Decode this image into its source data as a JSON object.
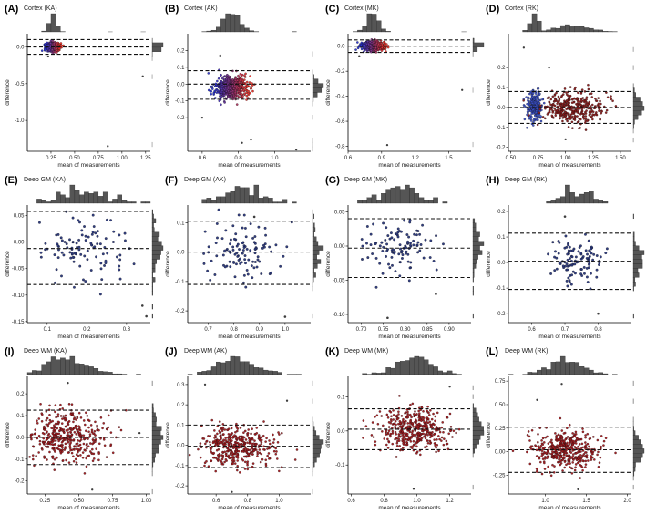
{
  "figure": {
    "y_label": "difference",
    "x_label": "mean of measurements"
  },
  "chart_data": [
    {
      "letter": "(A)",
      "title": "Cortex (KA)",
      "type": "scatter",
      "style": "dense-grad",
      "center_x": 0.27,
      "spread_x": 0.035,
      "center_y": 0.0,
      "spread_y": 0.028,
      "mean_diff": 0.0,
      "loa_upper": 0.1,
      "loa_lower": -0.1,
      "xlim": [
        0.0,
        1.3
      ],
      "ylim": [
        -1.42,
        0.18
      ],
      "x_ticks": [
        "0.25",
        "0.50",
        "0.75",
        "1.00",
        "1.25"
      ],
      "y_ticks": [
        "-1.0",
        "-0.5",
        "0.0"
      ],
      "outliers": [
        [
          1.22,
          -0.4
        ],
        [
          0.85,
          -1.35
        ],
        [
          0.22,
          -0.13
        ]
      ]
    },
    {
      "letter": "(B)",
      "title": "Cortex (AK)",
      "type": "scatter",
      "style": "dense-grad",
      "center_x": 0.76,
      "spread_x": 0.045,
      "center_y": -0.02,
      "spread_y": 0.032,
      "mean_diff": 0.0,
      "loa_upper": 0.08,
      "loa_lower": -0.09,
      "xlim": [
        0.52,
        1.2
      ],
      "ylim": [
        -0.4,
        0.3
      ],
      "x_ticks": [
        "0.6",
        "0.8",
        "1.0"
      ],
      "y_ticks": [
        "-0.2",
        "-0.1",
        "0.0",
        "0.1",
        "0.2"
      ],
      "outliers": [
        [
          0.82,
          -0.35
        ],
        [
          1.12,
          -0.39
        ],
        [
          0.6,
          -0.2
        ],
        [
          0.87,
          -0.33
        ],
        [
          0.7,
          0.17
        ]
      ]
    },
    {
      "letter": "(C)",
      "title": "Cortex (MK)",
      "type": "scatter",
      "style": "dense-grad",
      "center_x": 0.82,
      "spread_x": 0.05,
      "center_y": 0.0,
      "spread_y": 0.018,
      "mean_diff": 0.0,
      "loa_upper": 0.05,
      "loa_lower": -0.05,
      "xlim": [
        0.6,
        1.7
      ],
      "ylim": [
        -0.84,
        0.1
      ],
      "x_ticks": [
        "0.6",
        "0.9",
        "1.2",
        "1.5"
      ],
      "y_ticks": [
        "-0.8",
        "-0.6",
        "-0.4",
        "-0.2",
        "0.0"
      ],
      "outliers": [
        [
          1.62,
          -0.35
        ],
        [
          0.95,
          -0.79
        ],
        [
          0.7,
          -0.08
        ]
      ]
    },
    {
      "letter": "(D)",
      "title": "Cortex (RK)",
      "type": "scatter",
      "style": "two-cluster",
      "center_x": 1.0,
      "spread_x": 0.16,
      "center_y": 0.01,
      "spread_y": 0.04,
      "mean_diff": 0.0,
      "loa_upper": 0.08,
      "loa_lower": -0.08,
      "xlim": [
        0.48,
        1.6
      ],
      "ylim": [
        -0.22,
        0.37
      ],
      "x_ticks": [
        "0.50",
        "0.75",
        "1.00",
        "1.25",
        "1.50"
      ],
      "y_ticks": [
        "-0.2",
        "-0.1",
        "0.0",
        "0.1",
        "0.2"
      ],
      "outliers": [
        [
          0.62,
          0.3
        ],
        [
          1.0,
          -0.16
        ],
        [
          0.85,
          0.2
        ]
      ]
    },
    {
      "letter": "(E)",
      "title": "Deep GM (KA)",
      "type": "scatter",
      "style": "sparse",
      "color": "#27357a",
      "center_x": 0.2,
      "spread_x": 0.07,
      "center_y": -0.012,
      "spread_y": 0.03,
      "mean_diff": -0.012,
      "loa_upper": 0.058,
      "loa_lower": -0.08,
      "xlim": [
        0.05,
        0.36
      ],
      "ylim": [
        -0.152,
        0.07
      ],
      "x_ticks": [
        "0.1",
        "0.2",
        "0.3"
      ],
      "y_ticks": [
        "-0.15",
        "-0.10",
        "-0.05",
        "0.00",
        "0.05"
      ],
      "outliers": [
        [
          0.34,
          -0.12
        ],
        [
          0.35,
          -0.14
        ]
      ]
    },
    {
      "letter": "(F)",
      "title": "Deep GM (AK)",
      "type": "scatter",
      "style": "sparse",
      "color": "#27357a",
      "center_x": 0.82,
      "spread_x": 0.07,
      "center_y": 0.0,
      "spread_y": 0.05,
      "mean_diff": 0.0,
      "loa_upper": 0.105,
      "loa_lower": -0.11,
      "xlim": [
        0.62,
        1.1
      ],
      "ylim": [
        -0.24,
        0.16
      ],
      "x_ticks": [
        "0.7",
        "0.8",
        "0.9",
        "1.0"
      ],
      "y_ticks": [
        "-0.2",
        "-0.1",
        "0.0",
        "0.1"
      ],
      "outliers": [
        [
          1.0,
          -0.22
        ],
        [
          0.88,
          0.12
        ]
      ]
    },
    {
      "letter": "(G)",
      "title": "Deep GM (MK)",
      "type": "scatter",
      "style": "sparse",
      "color": "#27357a",
      "center_x": 0.78,
      "spread_x": 0.045,
      "center_y": -0.003,
      "spread_y": 0.022,
      "mean_diff": -0.003,
      "loa_upper": 0.04,
      "loa_lower": -0.046,
      "xlim": [
        0.67,
        0.95
      ],
      "ylim": [
        -0.112,
        0.06
      ],
      "x_ticks": [
        "0.70",
        "0.75",
        "0.80",
        "0.85",
        "0.90"
      ],
      "y_ticks": [
        "-0.10",
        "-0.05",
        "0.00",
        "0.05"
      ],
      "outliers": [
        [
          0.76,
          -0.105
        ],
        [
          0.87,
          -0.07
        ]
      ]
    },
    {
      "letter": "(H)",
      "title": "Deep GM (RK)",
      "type": "scatter",
      "style": "sparse",
      "color": "#27357a",
      "center_x": 0.73,
      "spread_x": 0.04,
      "center_y": 0.005,
      "spread_y": 0.04,
      "mean_diff": 0.005,
      "loa_upper": 0.115,
      "loa_lower": -0.105,
      "xlim": [
        0.53,
        0.9
      ],
      "ylim": [
        -0.235,
        0.225
      ],
      "x_ticks": [
        "0.6",
        "0.7",
        "0.8"
      ],
      "y_ticks": [
        "-0.2",
        "-0.1",
        "0.0",
        "0.1",
        "0.2"
      ],
      "outliers": [
        [
          0.8,
          -0.2
        ],
        [
          0.7,
          0.18
        ]
      ]
    },
    {
      "letter": "(I)",
      "title": "Deep WM (KA)",
      "type": "scatter",
      "style": "dense-red",
      "center_x": 0.42,
      "spread_x": 0.15,
      "center_y": 0.0,
      "spread_y": 0.06,
      "mean_diff": 0.0,
      "loa_upper": 0.125,
      "loa_lower": -0.125,
      "xlim": [
        0.12,
        1.03
      ],
      "ylim": [
        -0.26,
        0.28
      ],
      "x_ticks": [
        "0.25",
        "0.50",
        "0.75",
        "1.00"
      ],
      "y_ticks": [
        "-0.2",
        "-0.1",
        "0.0",
        "0.1",
        "0.2"
      ],
      "outliers": [
        [
          0.42,
          0.25
        ],
        [
          0.95,
          0.02
        ],
        [
          0.6,
          -0.24
        ]
      ]
    },
    {
      "letter": "(J)",
      "title": "Deep WM (AK)",
      "type": "scatter",
      "style": "dense-red",
      "center_x": 0.74,
      "spread_x": 0.12,
      "center_y": -0.005,
      "spread_y": 0.05,
      "mean_diff": -0.005,
      "loa_upper": 0.1,
      "loa_lower": -0.11,
      "xlim": [
        0.42,
        1.2
      ],
      "ylim": [
        -0.24,
        0.34
      ],
      "x_ticks": [
        "0.6",
        "0.8",
        "1.0"
      ],
      "y_ticks": [
        "-0.2",
        "-0.1",
        "0.0",
        "0.1",
        "0.2",
        "0.3"
      ],
      "outliers": [
        [
          0.53,
          0.3
        ],
        [
          0.7,
          -0.23
        ],
        [
          1.05,
          0.22
        ]
      ]
    },
    {
      "letter": "(K)",
      "title": "Deep WM (MK)",
      "type": "scatter",
      "style": "dense-red",
      "center_x": 0.98,
      "spread_x": 0.1,
      "center_y": 0.005,
      "spread_y": 0.03,
      "mean_diff": 0.005,
      "loa_upper": 0.065,
      "loa_lower": -0.055,
      "xlim": [
        0.58,
        1.33
      ],
      "ylim": [
        -0.185,
        0.16
      ],
      "x_ticks": [
        "0.6",
        "0.8",
        "1.0",
        "1.2"
      ],
      "y_ticks": [
        "-0.1",
        "0.0",
        "0.1"
      ],
      "outliers": [
        [
          0.98,
          -0.17
        ],
        [
          1.2,
          0.13
        ]
      ]
    },
    {
      "letter": "(L)",
      "title": "Deep WM (RK)",
      "type": "scatter",
      "style": "dense-red",
      "center_x": 1.25,
      "spread_x": 0.2,
      "center_y": 0.02,
      "spread_y": 0.11,
      "mean_diff": 0.02,
      "loa_upper": 0.26,
      "loa_lower": -0.22,
      "xlim": [
        0.55,
        2.05
      ],
      "ylim": [
        -0.45,
        0.8
      ],
      "x_ticks": [
        "1.0",
        "1.5",
        "2.0"
      ],
      "y_ticks": [
        "-0.25",
        "0.00",
        "0.25",
        "0.50",
        "0.75"
      ],
      "outliers": [
        [
          1.2,
          0.72
        ],
        [
          0.9,
          0.55
        ],
        [
          1.4,
          -0.4
        ]
      ]
    }
  ]
}
